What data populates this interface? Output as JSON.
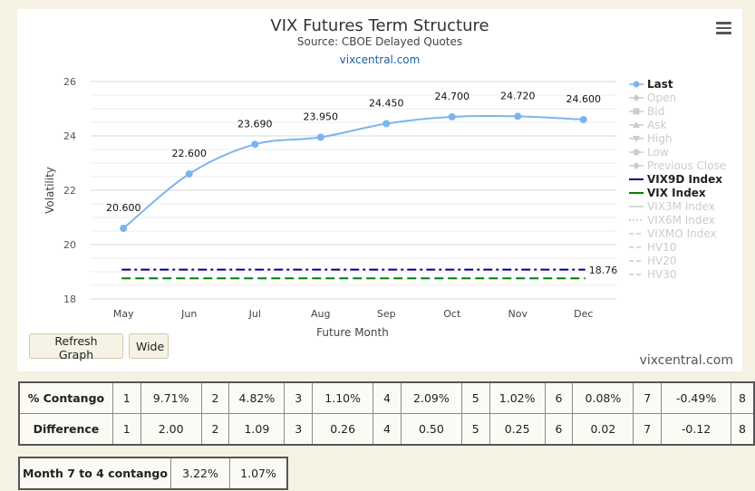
{
  "chart_data": {
    "type": "line",
    "title": "VIX Futures Term Structure",
    "subtitle": "Source: CBOE Delayed Quotes",
    "subtitle2": "vixcentral.com",
    "xlabel": "Future Month",
    "ylabel": "Volatility",
    "categories": [
      "May",
      "Jun",
      "Jul",
      "Aug",
      "Sep",
      "Oct",
      "Nov",
      "Dec"
    ],
    "ylim": [
      18,
      26
    ],
    "yticks": [
      18,
      20,
      22,
      24,
      26
    ],
    "grid": true,
    "legend_position": "right",
    "series": [
      {
        "name": "Last",
        "values": [
          20.6,
          22.6,
          23.69,
          23.95,
          24.45,
          24.7,
          24.72,
          24.6
        ],
        "labels": [
          "20.600",
          "22.600",
          "23.690",
          "23.950",
          "24.450",
          "24.700",
          "24.720",
          "24.600"
        ],
        "color": "#7cb5ec"
      }
    ],
    "reference_lines": [
      {
        "name": "VIX9D Index",
        "value": 19.08,
        "color": "#000080",
        "style": "dashdot"
      },
      {
        "name": "VIX Index",
        "value": 18.76,
        "color": "#008000",
        "style": "dash",
        "label": "18.76"
      }
    ],
    "legend": [
      {
        "name": "Last",
        "active": true,
        "symbol": "circle",
        "color": "#7cb5ec"
      },
      {
        "name": "Open",
        "active": false,
        "symbol": "diamond"
      },
      {
        "name": "Bid",
        "active": false,
        "symbol": "square"
      },
      {
        "name": "Ask",
        "active": false,
        "symbol": "triangle"
      },
      {
        "name": "High",
        "active": false,
        "symbol": "triangle-down"
      },
      {
        "name": "Low",
        "active": false,
        "symbol": "circle"
      },
      {
        "name": "Previous Close",
        "active": false,
        "symbol": "diamond"
      },
      {
        "name": "VIX9D Index",
        "active": true,
        "symbol": "line",
        "color": "#000080"
      },
      {
        "name": "VIX Index",
        "active": true,
        "symbol": "line",
        "color": "#008000"
      },
      {
        "name": "VIX3M Index",
        "active": false,
        "symbol": "line"
      },
      {
        "name": "VIX6M Index",
        "active": false,
        "symbol": "dotline"
      },
      {
        "name": "VIXMO Index",
        "active": false,
        "symbol": "dashline"
      },
      {
        "name": "HV10",
        "active": false,
        "symbol": "dashline"
      },
      {
        "name": "HV20",
        "active": false,
        "symbol": "dashline"
      },
      {
        "name": "HV30",
        "active": false,
        "symbol": "dashline"
      }
    ]
  },
  "buttons": {
    "refresh": "Refresh Graph",
    "wide": "Wide"
  },
  "watermark": "vixcentral.com",
  "colors": {
    "background": "#f5f1e3",
    "last_line": "#7cb5ec",
    "vix9d": "#000080",
    "vix": "#008000"
  },
  "icons": {
    "menu": "hamburger-menu-icon"
  },
  "stats_table": {
    "rows": [
      {
        "label": "% Contango",
        "cells": [
          "1",
          "9.71%",
          "2",
          "4.82%",
          "3",
          "1.10%",
          "4",
          "2.09%",
          "5",
          "1.02%",
          "6",
          "0.08%",
          "7",
          "-0.49%",
          "8"
        ]
      },
      {
        "label": "Difference",
        "cells": [
          "1",
          "2.00",
          "2",
          "1.09",
          "3",
          "0.26",
          "4",
          "0.50",
          "5",
          "0.25",
          "6",
          "0.02",
          "7",
          "-0.12",
          "8"
        ]
      }
    ]
  },
  "month74_table": {
    "label": "Month 7 to 4 contango",
    "values": [
      "3.22%",
      "1.07%"
    ]
  }
}
